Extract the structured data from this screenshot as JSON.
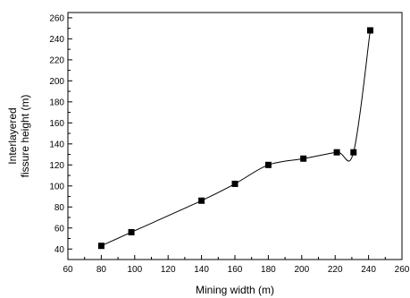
{
  "chart_data": {
    "type": "scatter",
    "title": "",
    "xlabel": "Mining width (m)",
    "ylabel_lines": [
      "Interlayered",
      "fissure height (m)"
    ],
    "xlim": [
      60,
      260
    ],
    "ylim": [
      30,
      265
    ],
    "x_ticks": [
      "60",
      "80",
      "100",
      "120",
      "140",
      "160",
      "180",
      "200",
      "220",
      "240",
      "260"
    ],
    "y_ticks": [
      "40",
      "60",
      "80",
      "100",
      "120",
      "140",
      "160",
      "180",
      "200",
      "220",
      "240",
      "260"
    ],
    "grid": false,
    "legend": "none",
    "series": [
      {
        "marker": "square",
        "color": "#000000",
        "x": [
          80,
          98,
          140,
          160,
          180,
          201,
          221,
          231,
          241
        ],
        "y": [
          43,
          56,
          86,
          102,
          120,
          126,
          132,
          132,
          248
        ]
      }
    ],
    "fit_line": {
      "style": "smooth-curve",
      "color": "#000000"
    }
  }
}
